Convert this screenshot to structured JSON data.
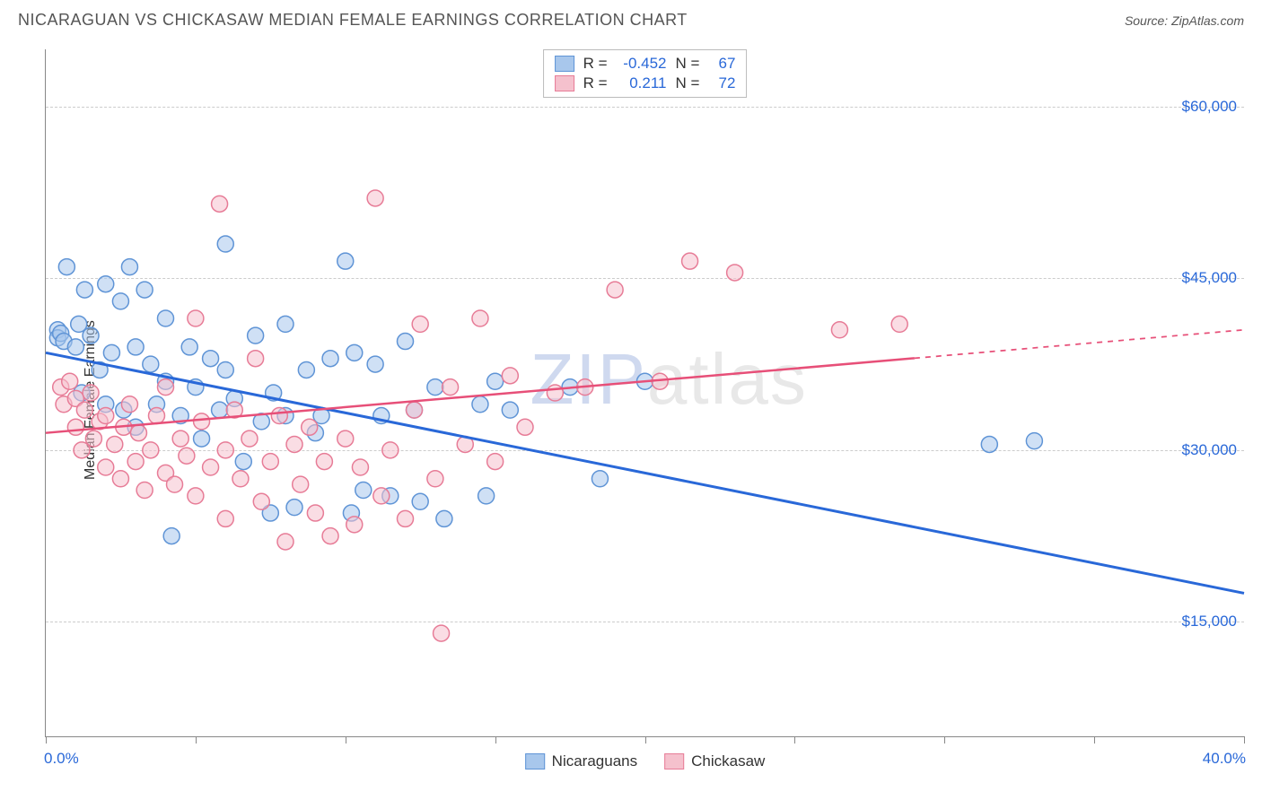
{
  "title": "NICARAGUAN VS CHICKASAW MEDIAN FEMALE EARNINGS CORRELATION CHART",
  "source_label": "Source:",
  "source_name": "ZipAtlas.com",
  "y_axis_label": "Median Female Earnings",
  "watermark_text": "ZIPatlas",
  "watermark_color_z": "#cfd9ef",
  "watermark_color_rest": "#e8e8e8",
  "chart": {
    "type": "scatter",
    "background_color": "#ffffff",
    "grid_color": "#cccccc",
    "axis_color": "#888888",
    "x_min": 0.0,
    "x_max": 40.0,
    "x_tick_step": 5.0,
    "x_label_min": "0.0%",
    "x_label_max": "40.0%",
    "y_min": 5000,
    "y_max": 65000,
    "y_gridlines": [
      15000,
      30000,
      45000,
      60000
    ],
    "y_tick_labels": [
      "$15,000",
      "$30,000",
      "$45,000",
      "$60,000"
    ],
    "y_tick_color": "#2968d8",
    "marker_radius": 9,
    "marker_stroke_width": 1.5,
    "series": [
      {
        "name": "Nicaraguans",
        "fill": "#a8c7ec",
        "stroke": "#5f94d6",
        "fill_opacity": 0.55,
        "R": "-0.452",
        "N": "67",
        "trend": {
          "x1": 0,
          "y1": 38500,
          "x2": 40,
          "y2": 17500,
          "solid_until_x": 40,
          "stroke": "#2968d8",
          "width": 3
        },
        "points": [
          [
            0.4,
            40500
          ],
          [
            0.4,
            39800
          ],
          [
            0.5,
            40200
          ],
          [
            0.6,
            39500
          ],
          [
            0.7,
            46000
          ],
          [
            1.0,
            39000
          ],
          [
            1.1,
            41000
          ],
          [
            1.2,
            35000
          ],
          [
            1.3,
            44000
          ],
          [
            1.5,
            40000
          ],
          [
            1.8,
            37000
          ],
          [
            2.0,
            44500
          ],
          [
            2.0,
            34000
          ],
          [
            2.2,
            38500
          ],
          [
            2.5,
            43000
          ],
          [
            2.6,
            33500
          ],
          [
            2.8,
            46000
          ],
          [
            3.0,
            39000
          ],
          [
            3.0,
            32000
          ],
          [
            3.3,
            44000
          ],
          [
            3.5,
            37500
          ],
          [
            3.7,
            34000
          ],
          [
            4.0,
            41500
          ],
          [
            4.0,
            36000
          ],
          [
            4.2,
            22500
          ],
          [
            4.5,
            33000
          ],
          [
            4.8,
            39000
          ],
          [
            5.0,
            35500
          ],
          [
            5.2,
            31000
          ],
          [
            5.5,
            38000
          ],
          [
            5.8,
            33500
          ],
          [
            6.0,
            37000
          ],
          [
            6.0,
            48000
          ],
          [
            6.3,
            34500
          ],
          [
            6.6,
            29000
          ],
          [
            7.0,
            40000
          ],
          [
            7.2,
            32500
          ],
          [
            7.5,
            24500
          ],
          [
            7.6,
            35000
          ],
          [
            8.0,
            41000
          ],
          [
            8.0,
            33000
          ],
          [
            8.3,
            25000
          ],
          [
            8.7,
            37000
          ],
          [
            9.0,
            31500
          ],
          [
            9.2,
            33000
          ],
          [
            9.5,
            38000
          ],
          [
            10.0,
            46500
          ],
          [
            10.2,
            24500
          ],
          [
            10.3,
            38500
          ],
          [
            10.6,
            26500
          ],
          [
            11.0,
            37500
          ],
          [
            11.2,
            33000
          ],
          [
            11.5,
            26000
          ],
          [
            12.0,
            39500
          ],
          [
            12.3,
            33500
          ],
          [
            12.5,
            25500
          ],
          [
            13.0,
            35500
          ],
          [
            13.3,
            24000
          ],
          [
            14.5,
            34000
          ],
          [
            14.7,
            26000
          ],
          [
            15.0,
            36000
          ],
          [
            15.5,
            33500
          ],
          [
            17.5,
            35500
          ],
          [
            18.5,
            27500
          ],
          [
            20.0,
            36000
          ],
          [
            31.5,
            30500
          ],
          [
            33.0,
            30800
          ]
        ]
      },
      {
        "name": "Chickasaw",
        "fill": "#f5c1cd",
        "stroke": "#e77c97",
        "fill_opacity": 0.55,
        "R": "0.211",
        "N": "72",
        "trend": {
          "x1": 0,
          "y1": 31500,
          "x2": 40,
          "y2": 40500,
          "solid_until_x": 29,
          "stroke": "#e74f78",
          "width": 2.5
        },
        "points": [
          [
            0.5,
            35500
          ],
          [
            0.6,
            34000
          ],
          [
            0.8,
            36000
          ],
          [
            1.0,
            32000
          ],
          [
            1.0,
            34500
          ],
          [
            1.2,
            30000
          ],
          [
            1.3,
            33500
          ],
          [
            1.5,
            35000
          ],
          [
            1.6,
            31000
          ],
          [
            1.8,
            32500
          ],
          [
            2.0,
            28500
          ],
          [
            2.0,
            33000
          ],
          [
            2.3,
            30500
          ],
          [
            2.5,
            27500
          ],
          [
            2.6,
            32000
          ],
          [
            2.8,
            34000
          ],
          [
            3.0,
            29000
          ],
          [
            3.1,
            31500
          ],
          [
            3.3,
            26500
          ],
          [
            3.5,
            30000
          ],
          [
            3.7,
            33000
          ],
          [
            4.0,
            28000
          ],
          [
            4.0,
            35500
          ],
          [
            4.3,
            27000
          ],
          [
            4.5,
            31000
          ],
          [
            4.7,
            29500
          ],
          [
            5.0,
            26000
          ],
          [
            5.0,
            41500
          ],
          [
            5.2,
            32500
          ],
          [
            5.5,
            28500
          ],
          [
            5.8,
            51500
          ],
          [
            6.0,
            30000
          ],
          [
            6.0,
            24000
          ],
          [
            6.3,
            33500
          ],
          [
            6.5,
            27500
          ],
          [
            6.8,
            31000
          ],
          [
            7.0,
            38000
          ],
          [
            7.2,
            25500
          ],
          [
            7.5,
            29000
          ],
          [
            7.8,
            33000
          ],
          [
            8.0,
            22000
          ],
          [
            8.3,
            30500
          ],
          [
            8.5,
            27000
          ],
          [
            8.8,
            32000
          ],
          [
            9.0,
            24500
          ],
          [
            9.3,
            29000
          ],
          [
            9.5,
            22500
          ],
          [
            10.0,
            31000
          ],
          [
            10.3,
            23500
          ],
          [
            10.5,
            28500
          ],
          [
            11.0,
            52000
          ],
          [
            11.2,
            26000
          ],
          [
            11.5,
            30000
          ],
          [
            12.0,
            24000
          ],
          [
            12.3,
            33500
          ],
          [
            12.5,
            41000
          ],
          [
            13.0,
            27500
          ],
          [
            13.2,
            14000
          ],
          [
            13.5,
            35500
          ],
          [
            14.0,
            30500
          ],
          [
            14.5,
            41500
          ],
          [
            15.0,
            29000
          ],
          [
            15.5,
            36500
          ],
          [
            16.0,
            32000
          ],
          [
            17.0,
            35000
          ],
          [
            18.0,
            35500
          ],
          [
            19.0,
            44000
          ],
          [
            20.5,
            36000
          ],
          [
            21.5,
            46500
          ],
          [
            23.0,
            45500
          ],
          [
            26.5,
            40500
          ],
          [
            28.5,
            41000
          ]
        ]
      }
    ]
  },
  "stats_labels": {
    "R": "R =",
    "N": "N ="
  },
  "bottom_legend": [
    {
      "name": "Nicaraguans",
      "fill": "#a8c7ec",
      "stroke": "#5f94d6"
    },
    {
      "name": "Chickasaw",
      "fill": "#f5c1cd",
      "stroke": "#e77c97"
    }
  ]
}
